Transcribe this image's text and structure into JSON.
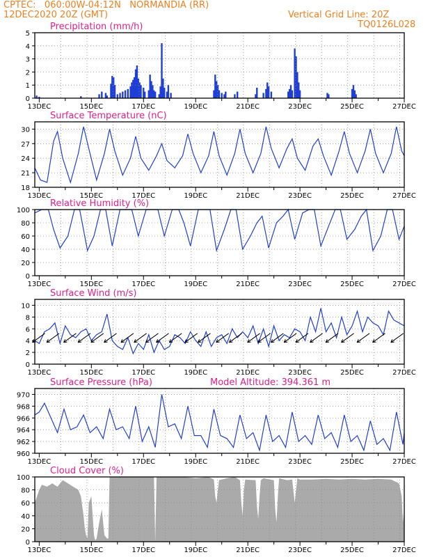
{
  "header": {
    "line1_left": "CPTEC:   060:00W-04:12N   NORMANDIA (RR)",
    "line2_left": "12DEC2020 20Z (GMT)",
    "line1_right": "Vertical Grid Line: 20Z",
    "line2_right": "TQ0126L028"
  },
  "colors": {
    "header": "#f07f1e",
    "title": "#e0208a",
    "series": "#1f3fd6",
    "cloud": "#aaaaaa"
  },
  "chart_data": [
    {
      "type": "bar",
      "title": "Precipitation (mm/h)",
      "x_tick_labels": [
        "13DEC",
        "15DEC",
        "17DEC",
        "19DEC",
        "21DEC",
        "23DEC",
        "25DEC",
        "27DEC"
      ],
      "ylim": [
        0,
        5
      ],
      "y_ticks": [
        0,
        1,
        2,
        3,
        4,
        5
      ],
      "grid": true,
      "days": [
        12.83,
        27.0
      ],
      "bars": [
        [
          12.9,
          0.2
        ],
        [
          13.0,
          0.1
        ],
        [
          14.6,
          0.15
        ],
        [
          15.3,
          0.3
        ],
        [
          15.4,
          0.5
        ],
        [
          15.55,
          0.4
        ],
        [
          15.6,
          0.2
        ],
        [
          15.75,
          1.1
        ],
        [
          15.8,
          1.7
        ],
        [
          15.85,
          1.6
        ],
        [
          15.9,
          1.0
        ],
        [
          16.0,
          0.3
        ],
        [
          16.1,
          0.4
        ],
        [
          16.2,
          0.5
        ],
        [
          16.3,
          0.6
        ],
        [
          16.4,
          0.7
        ],
        [
          16.5,
          0.9
        ],
        [
          16.55,
          1.2
        ],
        [
          16.6,
          1.4
        ],
        [
          16.65,
          1.6
        ],
        [
          16.7,
          2.2
        ],
        [
          16.75,
          2.5
        ],
        [
          16.8,
          1.5
        ],
        [
          16.85,
          1.2
        ],
        [
          16.9,
          1.0
        ],
        [
          17.0,
          0.8
        ],
        [
          17.05,
          0.5
        ],
        [
          17.2,
          0.6
        ],
        [
          17.25,
          1.8
        ],
        [
          17.3,
          1.3
        ],
        [
          17.35,
          1.0
        ],
        [
          17.4,
          0.6
        ],
        [
          17.45,
          0.5
        ],
        [
          17.6,
          0.3
        ],
        [
          17.65,
          0.9
        ],
        [
          17.7,
          4.2
        ],
        [
          17.75,
          1.5
        ],
        [
          17.8,
          0.8
        ],
        [
          17.9,
          0.5
        ],
        [
          17.95,
          1.0
        ],
        [
          18.05,
          0.4
        ],
        [
          19.7,
          0.6
        ],
        [
          19.75,
          1.8
        ],
        [
          19.8,
          1.3
        ],
        [
          19.85,
          1.0
        ],
        [
          19.9,
          0.6
        ],
        [
          20.0,
          0.4
        ],
        [
          20.1,
          0.3
        ],
        [
          20.15,
          0.5
        ],
        [
          20.5,
          0.3
        ],
        [
          20.6,
          0.5
        ],
        [
          21.3,
          0.3
        ],
        [
          21.35,
          0.8
        ],
        [
          21.6,
          0.4
        ],
        [
          21.7,
          0.7
        ],
        [
          21.75,
          1.2
        ],
        [
          21.8,
          0.9
        ],
        [
          21.9,
          0.5
        ],
        [
          22.55,
          0.5
        ],
        [
          22.6,
          0.7
        ],
        [
          22.65,
          1.0
        ],
        [
          22.7,
          0.6
        ],
        [
          22.8,
          3.8
        ],
        [
          22.85,
          3.2
        ],
        [
          22.9,
          2.0
        ],
        [
          22.95,
          1.2
        ],
        [
          23.0,
          0.6
        ],
        [
          24.05,
          0.4
        ],
        [
          24.1,
          0.3
        ],
        [
          25.0,
          0.7
        ],
        [
          25.05,
          1.0
        ],
        [
          25.1,
          0.6
        ],
        [
          25.15,
          0.3
        ]
      ]
    },
    {
      "type": "line",
      "title": "Surface Temperature (nC)",
      "x_tick_labels": [
        "13DEC",
        "15DEC",
        "17DEC",
        "19DEC",
        "21DEC",
        "23DEC",
        "25DEC",
        "27DEC"
      ],
      "ylim": [
        18,
        31.5
      ],
      "y_ticks": [
        18,
        21,
        24,
        27,
        30
      ],
      "grid": true,
      "days": [
        12.83,
        27.0
      ],
      "x": [
        12.83,
        13.05,
        13.3,
        13.55,
        13.7,
        13.9,
        14.2,
        14.5,
        14.7,
        14.9,
        15.2,
        15.5,
        15.7,
        15.9,
        16.2,
        16.5,
        16.7,
        16.9,
        17.2,
        17.5,
        17.7,
        17.9,
        18.2,
        18.5,
        18.7,
        18.9,
        19.2,
        19.5,
        19.7,
        19.9,
        20.2,
        20.5,
        20.7,
        20.9,
        21.2,
        21.5,
        21.7,
        21.9,
        22.2,
        22.5,
        22.7,
        22.9,
        23.2,
        23.5,
        23.7,
        23.9,
        24.2,
        24.5,
        24.7,
        24.9,
        25.2,
        25.5,
        25.7,
        25.9,
        26.2,
        26.5,
        26.7,
        26.9,
        27.0
      ],
      "y": [
        22.0,
        19.5,
        19.0,
        27.5,
        29.5,
        24.0,
        19.0,
        25.0,
        30.5,
        26.0,
        19.5,
        25.0,
        30.0,
        25.5,
        20.5,
        24.0,
        28.5,
        24.0,
        21.5,
        24.5,
        27.0,
        23.5,
        22.0,
        24.5,
        29.0,
        25.0,
        21.0,
        24.5,
        29.5,
        24.5,
        20.5,
        25.0,
        30.0,
        25.0,
        21.0,
        25.0,
        30.5,
        26.0,
        22.0,
        26.0,
        28.0,
        24.0,
        21.5,
        26.5,
        28.0,
        24.5,
        20.5,
        25.5,
        29.5,
        25.0,
        21.0,
        25.5,
        30.0,
        25.0,
        21.0,
        25.0,
        30.5,
        25.5,
        24.5
      ]
    },
    {
      "type": "line",
      "title": "Relative Humidity (%)",
      "x_tick_labels": [
        "13DEC",
        "15DEC",
        "17DEC",
        "19DEC",
        "21DEC",
        "23DEC",
        "25DEC",
        "27DEC"
      ],
      "ylim": [
        0,
        100
      ],
      "y_ticks": [
        0,
        20,
        40,
        60,
        80,
        100
      ],
      "grid": true,
      "days": [
        12.83,
        27.0
      ],
      "x": [
        12.83,
        13.1,
        13.35,
        13.55,
        13.8,
        14.1,
        14.35,
        14.55,
        14.85,
        15.1,
        15.35,
        15.55,
        15.8,
        16.1,
        16.35,
        16.55,
        16.8,
        17.1,
        17.35,
        17.55,
        17.8,
        18.1,
        18.35,
        18.55,
        18.8,
        19.1,
        19.35,
        19.55,
        19.8,
        20.1,
        20.35,
        20.55,
        20.8,
        21.1,
        21.35,
        21.55,
        21.8,
        22.1,
        22.35,
        22.55,
        22.8,
        23.1,
        23.35,
        23.55,
        23.8,
        24.1,
        24.35,
        24.55,
        24.8,
        25.1,
        25.35,
        25.55,
        25.8,
        26.1,
        26.35,
        26.55,
        26.8,
        27.0
      ],
      "y": [
        95,
        100,
        100,
        70,
        42,
        60,
        100,
        100,
        38,
        60,
        100,
        100,
        45,
        100,
        100,
        100,
        60,
        100,
        100,
        100,
        60,
        100,
        100,
        80,
        45,
        100,
        100,
        100,
        38,
        70,
        100,
        100,
        40,
        60,
        80,
        90,
        42,
        80,
        90,
        100,
        55,
        95,
        100,
        100,
        45,
        75,
        100,
        100,
        55,
        70,
        90,
        100,
        38,
        60,
        100,
        100,
        55,
        75
      ]
    },
    {
      "type": "line",
      "title": "Surface Wind (m/s)",
      "x_tick_labels": [
        "13DEC",
        "15DEC",
        "17DEC",
        "19DEC",
        "21DEC",
        "23DEC",
        "25DEC",
        "27DEC"
      ],
      "ylim": [
        0,
        11
      ],
      "y_ticks": [
        0,
        2,
        4,
        6,
        8,
        10
      ],
      "grid": true,
      "days": [
        12.83,
        27.0
      ],
      "x": [
        12.83,
        13.0,
        13.2,
        13.4,
        13.6,
        13.8,
        14.0,
        14.2,
        14.4,
        14.6,
        14.8,
        15.0,
        15.2,
        15.4,
        15.6,
        15.8,
        16.0,
        16.2,
        16.4,
        16.6,
        16.8,
        17.0,
        17.2,
        17.4,
        17.6,
        17.8,
        18.0,
        18.2,
        18.4,
        18.6,
        18.8,
        19.0,
        19.2,
        19.4,
        19.6,
        19.8,
        20.0,
        20.2,
        20.4,
        20.6,
        20.8,
        21.0,
        21.2,
        21.4,
        21.6,
        21.8,
        22.0,
        22.2,
        22.4,
        22.6,
        22.8,
        23.0,
        23.2,
        23.4,
        23.6,
        23.8,
        24.0,
        24.2,
        24.4,
        24.6,
        24.8,
        25.0,
        25.2,
        25.4,
        25.6,
        25.8,
        26.0,
        26.2,
        26.4,
        26.6,
        26.8,
        27.0
      ],
      "y": [
        4.0,
        3.5,
        5.5,
        6.0,
        7.0,
        3.5,
        6.5,
        5.0,
        4.5,
        5.5,
        6.0,
        4.0,
        5.0,
        5.5,
        8.5,
        4.0,
        3.0,
        2.5,
        4.5,
        1.8,
        3.5,
        2.5,
        5.0,
        2.0,
        4.0,
        2.5,
        3.0,
        5.0,
        4.5,
        3.5,
        5.5,
        4.0,
        3.0,
        5.5,
        3.0,
        4.5,
        5.0,
        3.5,
        6.0,
        4.5,
        5.5,
        4.5,
        6.5,
        3.5,
        6.0,
        3.0,
        6.5,
        4.0,
        5.0,
        4.5,
        6.0,
        5.5,
        4.0,
        8.0,
        5.5,
        9.5,
        5.5,
        7.0,
        4.5,
        8.0,
        5.0,
        6.5,
        9.0,
        5.5,
        8.0,
        7.0,
        6.5,
        5.0,
        9.0,
        7.5,
        7.0,
        6.5
      ],
      "arrows": [
        [
          12.95,
          35
        ],
        [
          13.5,
          50
        ],
        [
          14.15,
          55
        ],
        [
          14.7,
          50
        ],
        [
          15.2,
          45
        ],
        [
          15.7,
          40
        ],
        [
          16.35,
          45
        ],
        [
          16.85,
          40
        ],
        [
          17.3,
          45
        ],
        [
          17.7,
          40
        ],
        [
          18.2,
          45
        ],
        [
          18.8,
          50
        ],
        [
          19.3,
          40
        ],
        [
          20.0,
          45
        ],
        [
          20.5,
          40
        ],
        [
          21.2,
          35
        ],
        [
          21.6,
          40
        ],
        [
          22.1,
          45
        ],
        [
          22.6,
          40
        ],
        [
          23.05,
          35
        ],
        [
          23.6,
          30
        ],
        [
          24.2,
          35
        ],
        [
          24.8,
          30
        ],
        [
          25.4,
          40
        ],
        [
          26.0,
          35
        ],
        [
          26.7,
          45
        ]
      ]
    },
    {
      "type": "line",
      "title": "Surface Pressure (hPa)",
      "annotation": "Model Altitude: 394.361 m",
      "x_tick_labels": [
        "13DEC",
        "15DEC",
        "17DEC",
        "19DEC",
        "21DEC",
        "23DEC",
        "25DEC",
        "27DEC"
      ],
      "ylim": [
        960,
        971
      ],
      "y_ticks": [
        960,
        962,
        964,
        966,
        968,
        970
      ],
      "grid": true,
      "days": [
        12.83,
        27.0
      ],
      "x": [
        12.83,
        13.0,
        13.2,
        13.45,
        13.7,
        13.95,
        14.2,
        14.45,
        14.7,
        14.95,
        15.2,
        15.45,
        15.7,
        15.95,
        16.2,
        16.45,
        16.7,
        16.95,
        17.2,
        17.45,
        17.7,
        17.95,
        18.2,
        18.45,
        18.7,
        18.95,
        19.2,
        19.45,
        19.7,
        19.95,
        20.2,
        20.45,
        20.7,
        20.95,
        21.2,
        21.45,
        21.7,
        21.95,
        22.2,
        22.45,
        22.7,
        22.95,
        23.2,
        23.45,
        23.7,
        23.95,
        24.2,
        24.45,
        24.7,
        24.95,
        25.2,
        25.45,
        25.7,
        25.95,
        26.2,
        26.45,
        26.7,
        26.95,
        27.0
      ],
      "y": [
        966.5,
        967.0,
        968.5,
        966.0,
        963.5,
        967.5,
        964.0,
        964.5,
        966.5,
        963.5,
        964.5,
        962.5,
        967.5,
        964.0,
        964.5,
        962.5,
        968.0,
        962.0,
        964.5,
        961.0,
        970.0,
        964.5,
        965.0,
        962.5,
        968.0,
        963.0,
        963.0,
        961.0,
        967.5,
        963.0,
        962.5,
        961.0,
        966.5,
        962.5,
        963.5,
        960.5,
        966.5,
        962.0,
        963.0,
        961.0,
        967.0,
        962.0,
        963.0,
        961.5,
        966.5,
        962.5,
        963.5,
        961.0,
        966.5,
        962.0,
        963.0,
        960.5,
        965.5,
        961.5,
        962.5,
        960.5,
        967.0,
        961.5,
        963.5
      ]
    },
    {
      "type": "area",
      "title": "Cloud Cover (%)",
      "x_tick_labels": [
        "13DEC",
        "15DEC",
        "17DEC",
        "19DEC",
        "21DEC",
        "23DEC",
        "25DEC",
        "27DEC"
      ],
      "ylim": [
        0,
        100
      ],
      "y_ticks": [
        0,
        20,
        40,
        60,
        80,
        100
      ],
      "grid": true,
      "days": [
        12.83,
        27.0
      ],
      "x": [
        12.83,
        13.0,
        13.1,
        13.3,
        13.5,
        13.7,
        13.9,
        14.1,
        14.3,
        14.5,
        14.6,
        14.7,
        14.75,
        14.8,
        14.85,
        14.9,
        15.0,
        15.05,
        15.1,
        15.15,
        15.2,
        15.3,
        15.4,
        15.5,
        15.6,
        15.65,
        15.7,
        16.0,
        16.5,
        17.0,
        17.4,
        17.45,
        17.5,
        17.55,
        17.6,
        18.0,
        18.5,
        19.0,
        19.5,
        19.7,
        19.75,
        19.8,
        19.85,
        19.9,
        20.2,
        20.5,
        20.7,
        20.75,
        20.8,
        20.85,
        20.9,
        21.3,
        21.35,
        21.4,
        21.45,
        21.5,
        21.6,
        22.0,
        22.05,
        22.1,
        22.15,
        22.2,
        22.5,
        22.7,
        22.8,
        22.85,
        22.9,
        23.0,
        23.5,
        24.0,
        24.5,
        25.0,
        25.5,
        26.0,
        26.5,
        26.8,
        26.9,
        26.95,
        27.0
      ],
      "y": [
        60,
        80,
        88,
        85,
        90,
        85,
        95,
        90,
        85,
        80,
        70,
        40,
        20,
        10,
        5,
        60,
        70,
        40,
        10,
        2,
        5,
        30,
        50,
        10,
        5,
        5,
        100,
        100,
        100,
        100,
        100,
        0,
        100,
        100,
        100,
        100,
        100,
        98,
        100,
        96,
        70,
        60,
        80,
        95,
        98,
        100,
        95,
        60,
        40,
        80,
        96,
        95,
        55,
        35,
        70,
        95,
        98,
        95,
        50,
        30,
        70,
        98,
        95,
        96,
        60,
        80,
        98,
        96,
        96,
        97,
        96,
        97,
        96,
        97,
        96,
        90,
        70,
        30,
        50
      ]
    }
  ]
}
